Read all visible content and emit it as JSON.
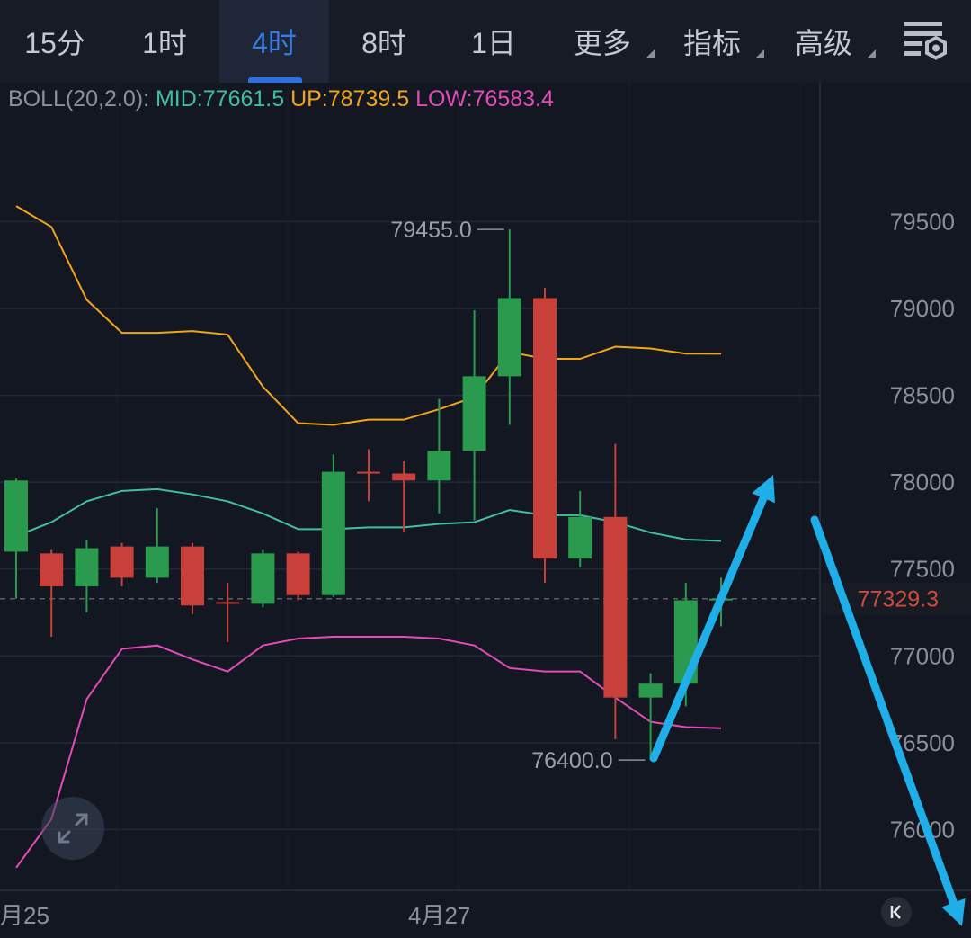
{
  "tabs": [
    {
      "label": "15分",
      "active": false,
      "dropdown": false
    },
    {
      "label": "1时",
      "active": false,
      "dropdown": false
    },
    {
      "label": "4时",
      "active": true,
      "dropdown": false
    },
    {
      "label": "8时",
      "active": false,
      "dropdown": false
    },
    {
      "label": "1日",
      "active": false,
      "dropdown": false
    },
    {
      "label": "更多",
      "active": false,
      "dropdown": true
    },
    {
      "label": "指标",
      "active": false,
      "dropdown": true
    },
    {
      "label": "高级",
      "active": false,
      "dropdown": true
    }
  ],
  "settings_icon": "chart-settings-icon",
  "indicator": {
    "name": "BOLL(20,2.0):",
    "mid": "MID:77661.5",
    "up": "UP:78739.5",
    "low": "LOW:76583.4"
  },
  "colors": {
    "up_candle": "#2a9a4e",
    "down_candle": "#c9403a",
    "mid_line": "#3fbfa0",
    "up_line": "#f2a516",
    "low_line": "#e24cb6",
    "arrow": "#1eaee8",
    "active_tab": "#3a7be8",
    "current_price": "#d04a3d"
  },
  "x_labels": [
    "月25",
    "4月27"
  ],
  "chart_data": {
    "type": "candlestick",
    "ylim": [
      75650,
      80300
    ],
    "y_ticks": [
      79500,
      79000,
      78500,
      78000,
      77500,
      77000,
      76500,
      76000
    ],
    "y_tick_labels": [
      "79500",
      "79000",
      "78500",
      "78000",
      "77500",
      "77000",
      "76500",
      "76000"
    ],
    "current_price": 77329.3,
    "current_price_label": "77329.3",
    "high_marker": {
      "value": 79455.0,
      "label": "79455.0",
      "candle": 14
    },
    "low_marker": {
      "value": 76400.0,
      "label": "76400.0",
      "candle": 18
    },
    "candles": [
      {
        "o": 77600,
        "h": 78020,
        "l": 77330,
        "c": 78010
      },
      {
        "o": 77590,
        "h": 77610,
        "l": 77110,
        "c": 77400
      },
      {
        "o": 77400,
        "h": 77670,
        "l": 77250,
        "c": 77620
      },
      {
        "o": 77630,
        "h": 77650,
        "l": 77400,
        "c": 77450
      },
      {
        "o": 77450,
        "h": 77850,
        "l": 77420,
        "c": 77630
      },
      {
        "o": 77630,
        "h": 77650,
        "l": 77240,
        "c": 77290
      },
      {
        "o": 77310,
        "h": 77420,
        "l": 77080,
        "c": 77300
      },
      {
        "o": 77300,
        "h": 77610,
        "l": 77280,
        "c": 77590
      },
      {
        "o": 77590,
        "h": 77600,
        "l": 77320,
        "c": 77350
      },
      {
        "o": 77350,
        "h": 78160,
        "l": 77340,
        "c": 78060
      },
      {
        "o": 78060,
        "h": 78190,
        "l": 77890,
        "c": 78050
      },
      {
        "o": 78050,
        "h": 78120,
        "l": 77710,
        "c": 78010
      },
      {
        "o": 78010,
        "h": 78480,
        "l": 77820,
        "c": 78180
      },
      {
        "o": 78180,
        "h": 78990,
        "l": 77780,
        "c": 78610
      },
      {
        "o": 78610,
        "h": 79455,
        "l": 78330,
        "c": 79060
      },
      {
        "o": 79060,
        "h": 79120,
        "l": 77420,
        "c": 77560
      },
      {
        "o": 77560,
        "h": 77950,
        "l": 77510,
        "c": 77800
      },
      {
        "o": 77800,
        "h": 78220,
        "l": 76520,
        "c": 76760
      },
      {
        "o": 76760,
        "h": 76900,
        "l": 76400,
        "c": 76840
      },
      {
        "o": 76840,
        "h": 77420,
        "l": 76710,
        "c": 77320
      },
      {
        "o": 77320,
        "h": 77450,
        "l": 77170,
        "c": 77329.3
      }
    ],
    "series": [
      {
        "name": "UP",
        "values": [
          79590,
          79470,
          79050,
          78860,
          78860,
          78870,
          78850,
          78550,
          78340,
          78330,
          78360,
          78360,
          78420,
          78490,
          78750,
          78710,
          78710,
          78780,
          78770,
          78740,
          78739.5
        ]
      },
      {
        "name": "MID",
        "values": [
          77690,
          77770,
          77890,
          77950,
          77960,
          77930,
          77890,
          77820,
          77730,
          77730,
          77740,
          77740,
          77760,
          77770,
          77840,
          77810,
          77810,
          77770,
          77710,
          77670,
          77661.5
        ]
      },
      {
        "name": "LOW",
        "values": [
          75780,
          76060,
          76750,
          77040,
          77060,
          76980,
          76910,
          77060,
          77100,
          77110,
          77110,
          77110,
          77100,
          77060,
          76930,
          76910,
          76910,
          76760,
          76620,
          76590,
          76583.4
        ]
      }
    ]
  }
}
